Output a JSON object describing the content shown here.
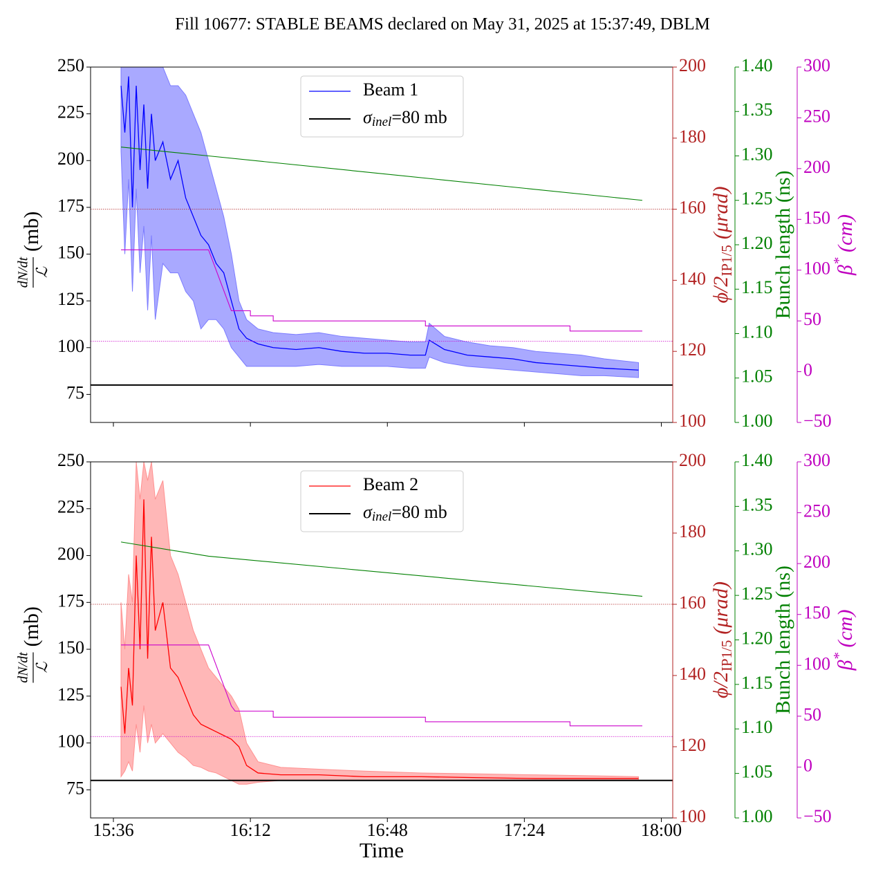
{
  "title": "Fill 10677: STABLE BEAMS declared on May 31, 2025 at 15:37:49, DBLM",
  "chart_data": [
    {
      "type": "line",
      "xlim": [
        "15:30",
        "18:03"
      ],
      "xticks": [
        "15:36",
        "16:12",
        "16:48",
        "17:24",
        "18:00"
      ],
      "xtick_labels": false,
      "ylim": [
        60,
        250
      ],
      "yticks": [
        75,
        100,
        125,
        150,
        175,
        200,
        225,
        250
      ],
      "ylabel": [
        "dN/dt",
        "ℒ",
        "(mb)"
      ],
      "y2lim": [
        100,
        200
      ],
      "y2ticks": [
        100,
        120,
        140,
        160,
        180,
        200
      ],
      "y2label": [
        "ϕ/2",
        "IP1/5",
        "(μrad)"
      ],
      "y2color": "#b22222",
      "y3lim": [
        1.0,
        1.4
      ],
      "y3ticks": [
        {
          "value": 1.0,
          "label": "1.00"
        },
        1.05,
        {
          "value": 1.1,
          "label": "1.10"
        },
        1.15,
        {
          "value": 1.2,
          "label": "1.20"
        },
        1.25,
        {
          "value": 1.3,
          "label": "1.30"
        },
        1.35,
        {
          "value": 1.4,
          "label": "1.40"
        }
      ],
      "y3label": "Bunch length (ns)",
      "y3color": "#008000",
      "y4lim": [
        -50,
        300
      ],
      "y4ticks": [
        {
          "value": -50,
          "label": "−50"
        },
        0,
        50,
        100,
        150,
        200,
        250,
        300
      ],
      "y4label": [
        "β",
        "*",
        " (cm)"
      ],
      "y4color": "#bf00bf",
      "series": [
        {
          "name": "Beam 1",
          "color": "#0000ff",
          "band_color": "#7b7bff",
          "x": [
            "15:38",
            "15:39",
            "15:40",
            "15:41",
            "15:42",
            "15:43",
            "15:44",
            "15:45",
            "15:46",
            "15:47",
            "15:49",
            "15:51",
            "15:53",
            "15:55",
            "15:57",
            "15:59",
            "16:01",
            "16:03",
            "16:05",
            "16:07",
            "16:09",
            "16:11",
            "16:14",
            "16:18",
            "16:24",
            "16:30",
            "16:36",
            "16:42",
            "16:48",
            "16:54",
            "16:58",
            "16:59",
            "17:03",
            "17:09",
            "17:15",
            "17:21",
            "17:27",
            "17:33",
            "17:39",
            "17:45",
            "17:54"
          ],
          "values": [
            240,
            215,
            245,
            175,
            240,
            195,
            230,
            185,
            225,
            200,
            210,
            190,
            200,
            180,
            170,
            160,
            155,
            145,
            140,
            125,
            110,
            105,
            102,
            100,
            99,
            100,
            98,
            97,
            97,
            96,
            96,
            104,
            99,
            96,
            95,
            94,
            92,
            91,
            90,
            89,
            88
          ],
          "lower": [
            205,
            150,
            190,
            130,
            185,
            140,
            165,
            120,
            160,
            115,
            145,
            140,
            140,
            130,
            125,
            110,
            115,
            115,
            110,
            100,
            95,
            90,
            90,
            90,
            90,
            91,
            90,
            90,
            90,
            89,
            89,
            95,
            92,
            90,
            89,
            88,
            87,
            86,
            85,
            85,
            84
          ],
          "upper": [
            250,
            250,
            250,
            250,
            250,
            250,
            250,
            250,
            250,
            250,
            250,
            240,
            240,
            235,
            225,
            215,
            200,
            185,
            170,
            150,
            125,
            115,
            110,
            108,
            107,
            108,
            106,
            105,
            104,
            103,
            103,
            113,
            106,
            103,
            101,
            100,
            98,
            97,
            96,
            94,
            92
          ]
        },
        {
          "axis": "y3",
          "color": "#008000",
          "x": [
            "15:38",
            "16:01",
            "17:55"
          ],
          "values": [
            1.31,
            1.3,
            1.25
          ]
        },
        {
          "axis": "y4",
          "color": "#cc00cc",
          "x": [
            "15:38",
            "16:01",
            "16:07",
            "16:12",
            "16:12",
            "16:18",
            "16:18",
            "16:58",
            "16:58",
            "17:36",
            "17:36",
            "17:55"
          ],
          "values": [
            120,
            120,
            60,
            60,
            55,
            55,
            50,
            50,
            45,
            45,
            40,
            40
          ]
        }
      ],
      "hlines": [
        {
          "name": [
            "σ",
            "inel",
            "=80 mb"
          ],
          "value": 80,
          "color": "#000000"
        },
        {
          "axis": "y2",
          "value": 160,
          "color": "#b22222",
          "style": "dotted"
        },
        {
          "axis": "y4",
          "value": 30,
          "color": "#cc00cc",
          "style": "dotted"
        }
      ]
    },
    {
      "type": "line",
      "xlim": [
        "15:30",
        "18:03"
      ],
      "xticks": [
        "15:36",
        "16:12",
        "16:48",
        "17:24",
        "18:00"
      ],
      "xtick_labels": true,
      "xlabel": "Time",
      "ylim": [
        60,
        250
      ],
      "yticks": [
        75,
        100,
        125,
        150,
        175,
        200,
        225,
        250
      ],
      "ylabel": [
        "dN/dt",
        "ℒ",
        "(mb)"
      ],
      "y2lim": [
        100,
        200
      ],
      "y2ticks": [
        100,
        120,
        140,
        160,
        180,
        200
      ],
      "y2label": [
        "ϕ/2",
        "IP1/5",
        "(μrad)"
      ],
      "y2color": "#b22222",
      "y3lim": [
        1.0,
        1.4
      ],
      "y3ticks": [
        {
          "value": 1.0,
          "label": "1.00"
        },
        1.05,
        {
          "value": 1.1,
          "label": "1.10"
        },
        1.15,
        {
          "value": 1.2,
          "label": "1.20"
        },
        1.25,
        {
          "value": 1.3,
          "label": "1.30"
        },
        1.35,
        {
          "value": 1.4,
          "label": "1.40"
        }
      ],
      "y3label": "Bunch length (ns)",
      "y3color": "#008000",
      "y4lim": [
        -50,
        300
      ],
      "y4ticks": [
        {
          "value": -50,
          "label": "−50"
        },
        0,
        50,
        100,
        150,
        200,
        250,
        300
      ],
      "y4label": [
        "β",
        "*",
        " (cm)"
      ],
      "y4color": "#bf00bf",
      "series": [
        {
          "name": "Beam 2",
          "color": "#ff0000",
          "band_color": "#ff9090",
          "x": [
            "15:38",
            "15:39",
            "15:40",
            "15:41",
            "15:42",
            "15:43",
            "15:44",
            "15:45",
            "15:46",
            "15:47",
            "15:49",
            "15:51",
            "15:53",
            "15:55",
            "15:57",
            "15:59",
            "16:01",
            "16:03",
            "16:05",
            "16:07",
            "16:09",
            "16:11",
            "16:14",
            "16:20",
            "16:30",
            "16:42",
            "16:57",
            "17:12",
            "17:27",
            "17:42",
            "17:54"
          ],
          "values": [
            130,
            105,
            140,
            120,
            200,
            150,
            230,
            145,
            210,
            160,
            175,
            140,
            135,
            125,
            115,
            110,
            108,
            106,
            104,
            102,
            98,
            88,
            84,
            83,
            83,
            82,
            82,
            81.5,
            81,
            81,
            81
          ],
          "lower": [
            82,
            85,
            90,
            85,
            110,
            95,
            120,
            100,
            110,
            100,
            105,
            100,
            95,
            92,
            88,
            87,
            85,
            84,
            82,
            80,
            78,
            78,
            79,
            80,
            80,
            80,
            80,
            80,
            80,
            80,
            80
          ],
          "upper": [
            175,
            150,
            190,
            175,
            250,
            230,
            250,
            240,
            250,
            230,
            240,
            200,
            190,
            175,
            160,
            150,
            140,
            135,
            130,
            125,
            118,
            100,
            90,
            87,
            86,
            85,
            84,
            83.5,
            83,
            82.5,
            82
          ]
        },
        {
          "axis": "y3",
          "color": "#008000",
          "x": [
            "15:38",
            "16:01",
            "17:55"
          ],
          "values": [
            1.31,
            1.294,
            1.249
          ]
        },
        {
          "axis": "y4",
          "color": "#cc00cc",
          "x": [
            "15:38",
            "16:01",
            "16:07",
            "16:08",
            "16:18",
            "16:18",
            "16:58",
            "16:58",
            "17:36",
            "17:36",
            "17:55"
          ],
          "values": [
            120,
            120,
            60,
            55,
            55,
            49,
            49,
            44.5,
            44.5,
            40.5,
            40.5
          ]
        }
      ],
      "hlines": [
        {
          "name": [
            "σ",
            "inel",
            "=80 mb"
          ],
          "value": 80,
          "color": "#000000"
        },
        {
          "axis": "y2",
          "value": 160,
          "color": "#b22222",
          "style": "dotted"
        },
        {
          "axis": "y4",
          "value": 30,
          "color": "#cc00cc",
          "style": "dotted"
        }
      ]
    }
  ]
}
